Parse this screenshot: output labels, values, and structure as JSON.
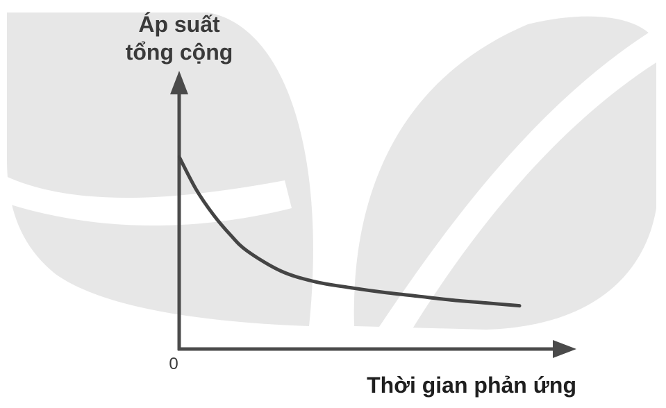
{
  "chart_data": {
    "type": "line",
    "title": "",
    "ylabel": [
      "Áp suất",
      "tổng cộng"
    ],
    "xlabel": "Thời gian phản ứng",
    "origin_label": "0",
    "grid": false,
    "xlim": [
      0,
      10
    ],
    "ylim": [
      0,
      10
    ],
    "series": [
      {
        "x": [
          0,
          0.5,
          1,
          1.5,
          2,
          3,
          4,
          5,
          6,
          7,
          8,
          9,
          10
        ],
        "y": [
          10,
          8.3,
          7.0,
          5.95,
          5.1,
          4.05,
          3.5,
          3.2,
          2.95,
          2.75,
          2.55,
          2.4,
          2.25
        ]
      }
    ],
    "colors": {
      "axis": "#4a4a4a",
      "curve": "#444444",
      "watermark": "#e7e7e7"
    }
  }
}
